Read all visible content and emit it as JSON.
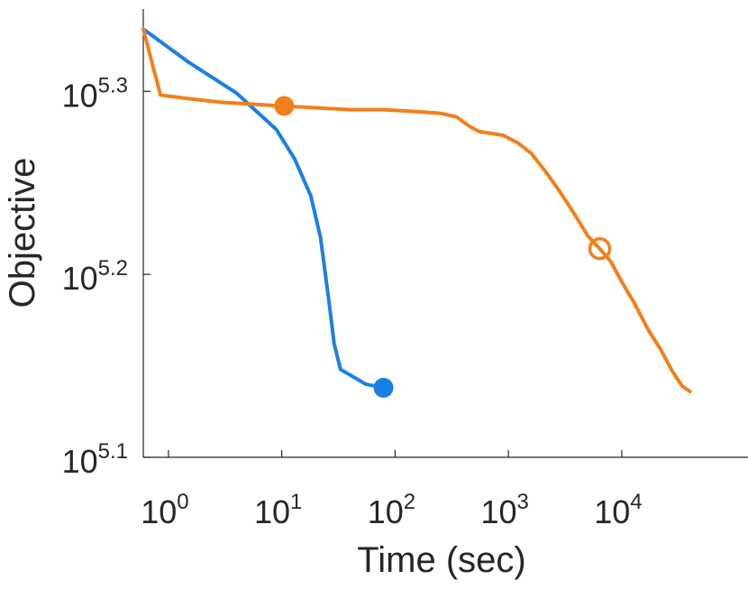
{
  "chart_data": {
    "type": "line",
    "xlabel": "Time (sec)",
    "ylabel": "Objective",
    "xscale": "log",
    "yscale": "log",
    "xlim": [
      0.6,
      130000
    ],
    "ylim": [
      5.1,
      5.345
    ],
    "grid": false,
    "legend": "none",
    "x_ticks": [
      {
        "base": "10",
        "exp": "0",
        "value": 1
      },
      {
        "base": "10",
        "exp": "1",
        "value": 10
      },
      {
        "base": "10",
        "exp": "2",
        "value": 100
      },
      {
        "base": "10",
        "exp": "3",
        "value": 1000
      },
      {
        "base": "10",
        "exp": "4",
        "value": 10000
      }
    ],
    "y_ticks": [
      {
        "base": "10",
        "exp": "5.1",
        "value": 5.1
      },
      {
        "base": "10",
        "exp": "5.2",
        "value": 5.2
      },
      {
        "base": "10",
        "exp": "5.3",
        "value": 5.3
      }
    ],
    "series": [
      {
        "color": "#1a80e6",
        "points": [
          [
            0.6,
            5.334
          ],
          [
            1.5,
            5.316
          ],
          [
            4,
            5.299
          ],
          [
            6,
            5.289
          ],
          [
            9,
            5.279
          ],
          [
            13,
            5.263
          ],
          [
            18,
            5.243
          ],
          [
            22,
            5.22
          ],
          [
            26,
            5.186
          ],
          [
            29,
            5.162
          ],
          [
            33,
            5.148
          ],
          [
            40,
            5.145
          ],
          [
            55,
            5.14
          ],
          [
            79,
            5.138
          ]
        ],
        "markers": [
          {
            "x": 79,
            "y": 5.138,
            "style": "filled"
          }
        ]
      },
      {
        "color": "#f37f1a",
        "points": [
          [
            0.6,
            5.334
          ],
          [
            0.85,
            5.298
          ],
          [
            1.5,
            5.296
          ],
          [
            3,
            5.294
          ],
          [
            10,
            5.292
          ],
          [
            20,
            5.291
          ],
          [
            40,
            5.29
          ],
          [
            80,
            5.29
          ],
          [
            150,
            5.289
          ],
          [
            250,
            5.288
          ],
          [
            350,
            5.286
          ],
          [
            450,
            5.281
          ],
          [
            550,
            5.278
          ],
          [
            700,
            5.277
          ],
          [
            900,
            5.276
          ],
          [
            1200,
            5.272
          ],
          [
            1600,
            5.266
          ],
          [
            2200,
            5.255
          ],
          [
            3000,
            5.243
          ],
          [
            4000,
            5.231
          ],
          [
            5000,
            5.221
          ],
          [
            6400,
            5.214
          ],
          [
            8000,
            5.207
          ],
          [
            10000,
            5.196
          ],
          [
            13000,
            5.184
          ],
          [
            17000,
            5.17
          ],
          [
            22000,
            5.159
          ],
          [
            28000,
            5.147
          ],
          [
            34000,
            5.139
          ],
          [
            40000,
            5.136
          ]
        ],
        "markers": [
          {
            "x": 10.5,
            "y": 5.292,
            "style": "filled"
          },
          {
            "x": 6400,
            "y": 5.214,
            "style": "open"
          }
        ]
      }
    ]
  }
}
